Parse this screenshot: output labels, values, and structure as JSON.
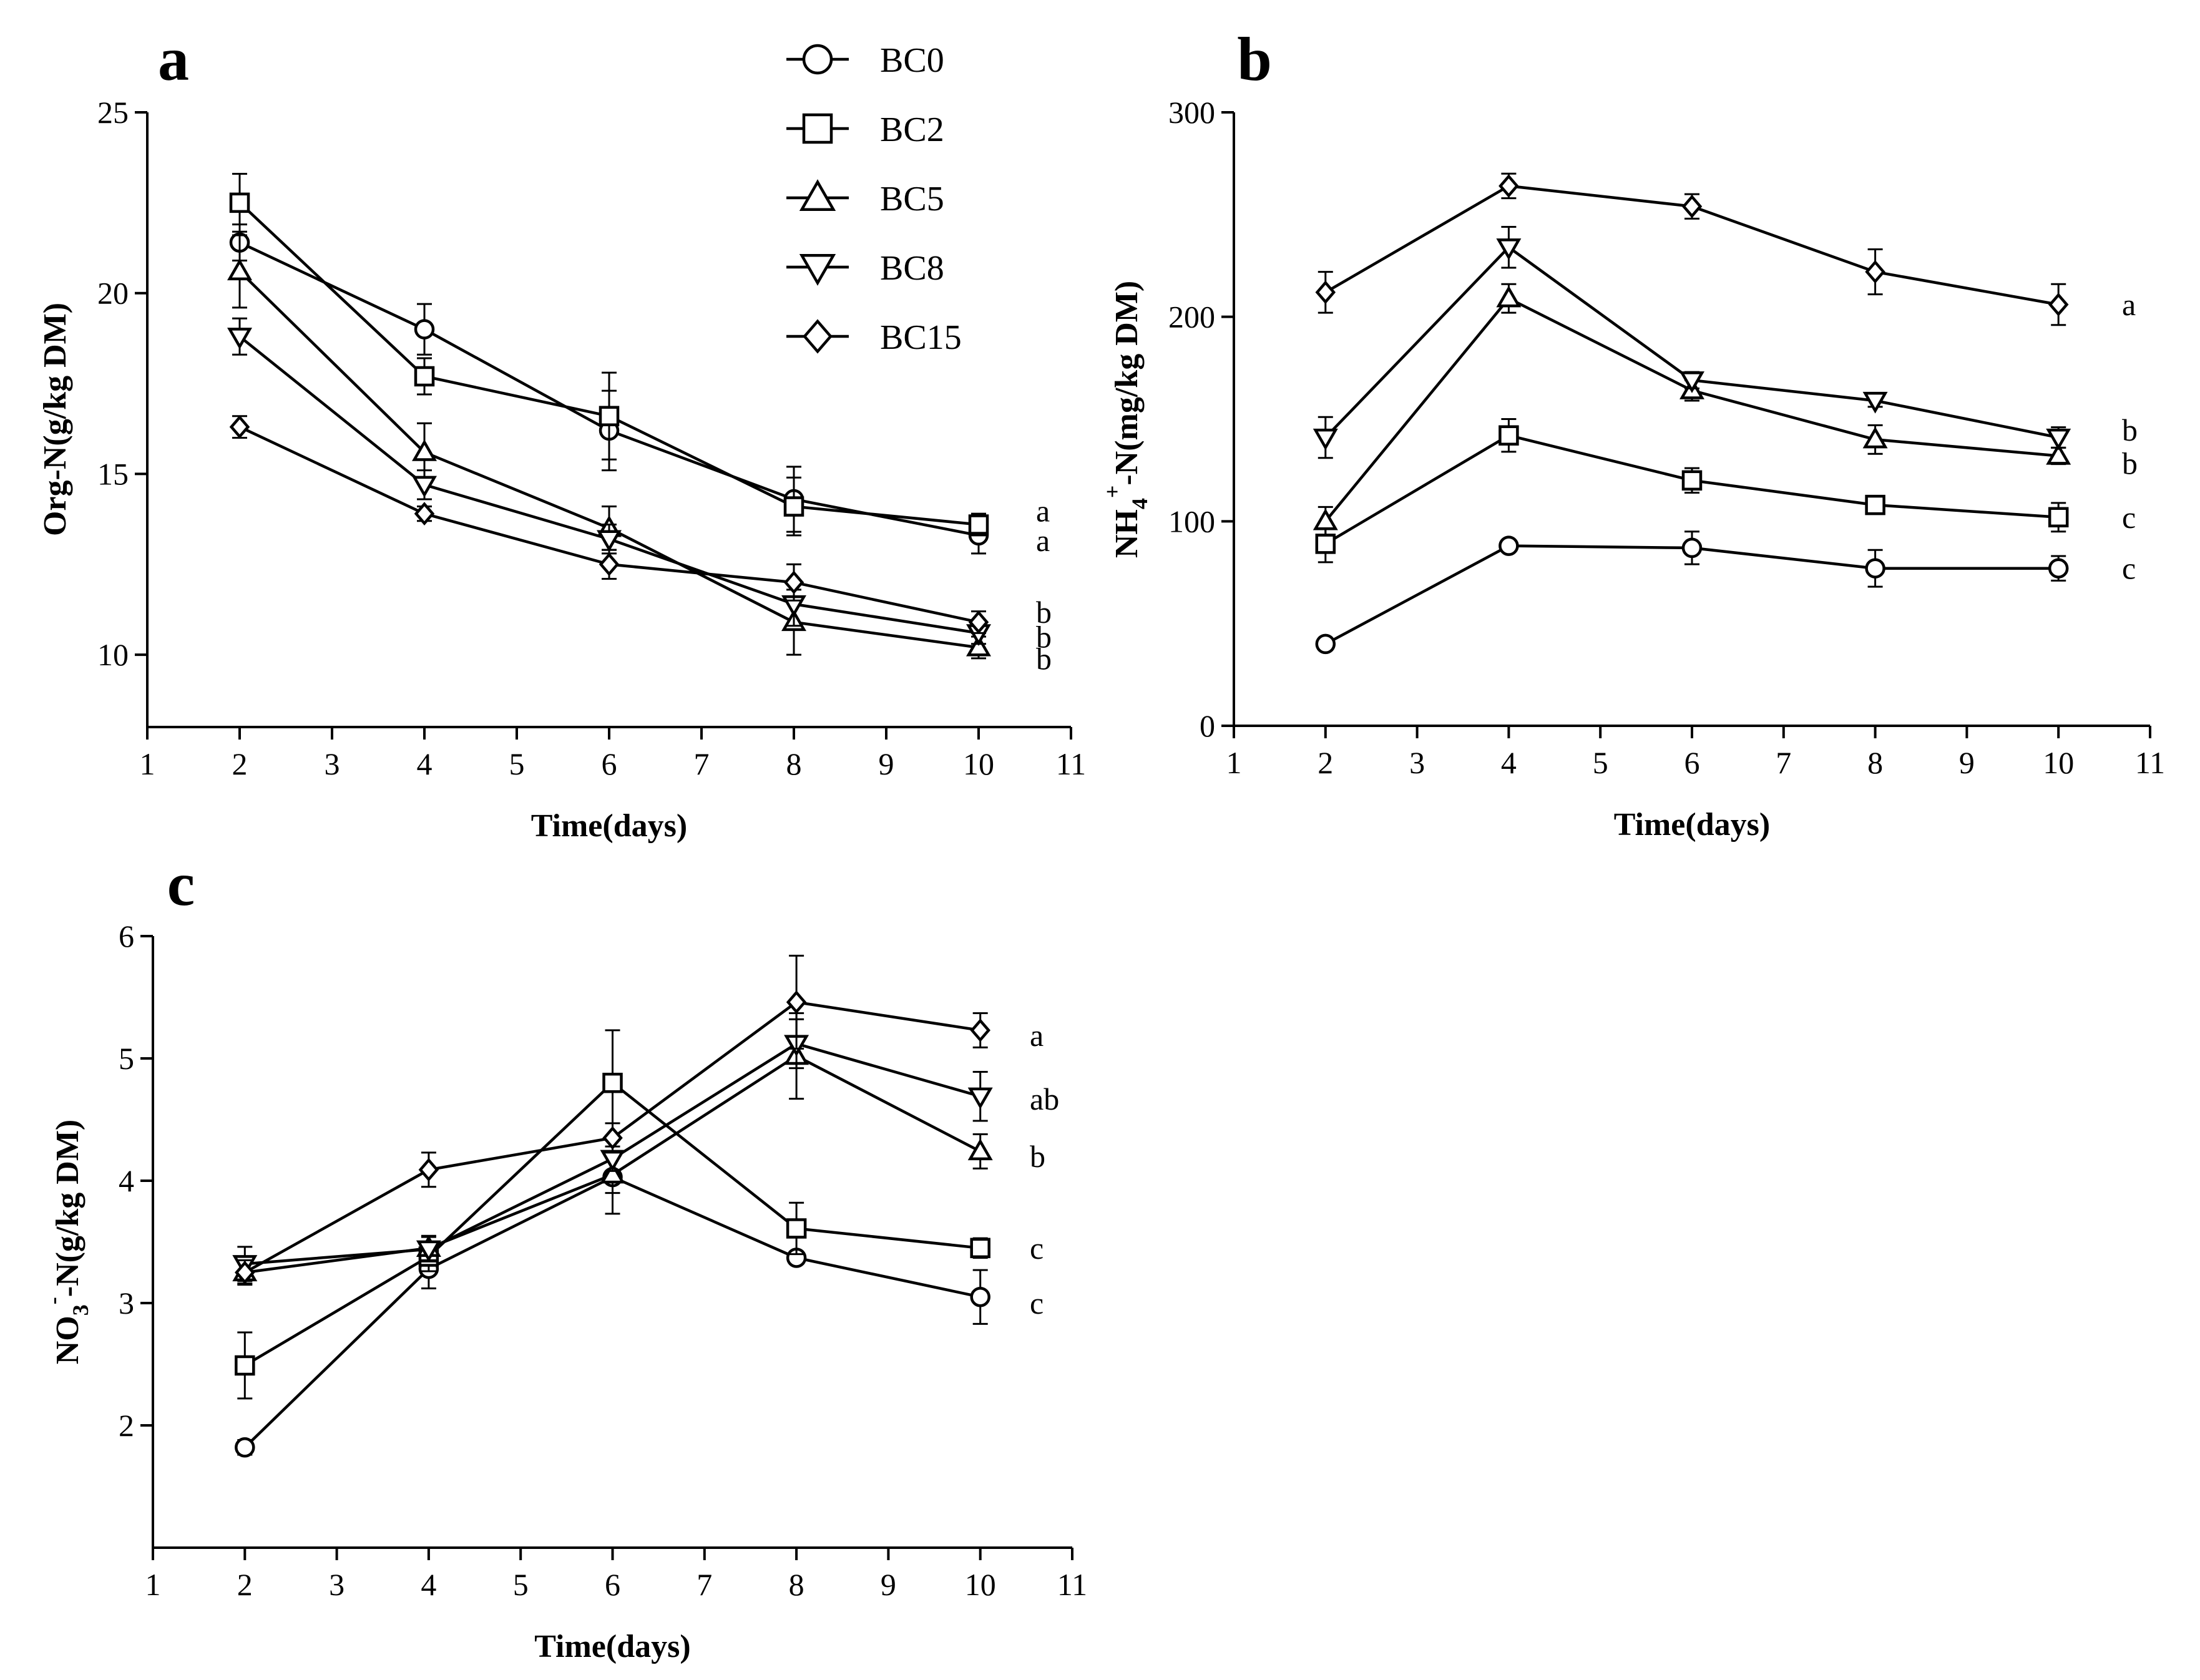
{
  "legend": [
    {
      "name": "BC0",
      "marker": "circle"
    },
    {
      "name": "BC2",
      "marker": "square"
    },
    {
      "name": "BC5",
      "marker": "triangle-up"
    },
    {
      "name": "BC8",
      "marker": "triangle-down"
    },
    {
      "name": "BC15",
      "marker": "diamond"
    }
  ],
  "chart_data": [
    {
      "type": "line",
      "panel": "a",
      "xlabel": "Time(days)",
      "ylabel": "Org-N(g/kg DM)",
      "xlim": [
        1,
        11
      ],
      "xticks": [
        1,
        2,
        3,
        4,
        5,
        6,
        7,
        8,
        9,
        10,
        11
      ],
      "ylim": [
        8,
        25
      ],
      "yticks": [
        10,
        15,
        20,
        25
      ],
      "x": [
        2,
        4,
        6,
        8,
        10
      ],
      "series": [
        {
          "name": "BC0",
          "marker": "circle",
          "values": [
            21.4,
            19.0,
            16.2,
            14.3,
            13.3
          ],
          "errors": [
            0.5,
            0.7,
            1.1,
            0.9,
            0.5
          ],
          "sig": "a"
        },
        {
          "name": "BC2",
          "marker": "square",
          "values": [
            22.5,
            17.7,
            16.6,
            14.1,
            13.6
          ],
          "errors": [
            0.8,
            0.5,
            1.2,
            0.8,
            0.3
          ],
          "sig": "a"
        },
        {
          "name": "BC5",
          "marker": "triangle-up",
          "values": [
            20.6,
            15.6,
            13.5,
            10.9,
            10.2
          ],
          "errors": [
            1.0,
            0.8,
            0.6,
            0.9,
            0.3
          ],
          "sig": "b"
        },
        {
          "name": "BC8",
          "marker": "triangle-down",
          "values": [
            18.8,
            14.7,
            13.2,
            11.4,
            10.6
          ],
          "errors": [
            0.5,
            0.4,
            0.4,
            0.6,
            0.3
          ],
          "sig": "b"
        },
        {
          "name": "BC15",
          "marker": "diamond",
          "values": [
            16.3,
            13.9,
            12.5,
            12.0,
            10.9
          ],
          "errors": [
            0.3,
            0.2,
            0.4,
            0.5,
            0.3
          ],
          "sig": "b"
        }
      ]
    },
    {
      "type": "line",
      "panel": "b",
      "xlabel": "Time(days)",
      "ylabel": "NH4+-N(mg/kg DM)",
      "ylabel_parts": {
        "base": "NH",
        "sub": "4",
        "sup": "+",
        "rest": "-N(mg/kg DM)"
      },
      "xlim": [
        1,
        11
      ],
      "xticks": [
        1,
        2,
        3,
        4,
        5,
        6,
        7,
        8,
        9,
        10,
        11
      ],
      "ylim": [
        0,
        300
      ],
      "yticks": [
        0,
        100,
        200,
        300
      ],
      "x": [
        2,
        4,
        6,
        8,
        10
      ],
      "series": [
        {
          "name": "BC0",
          "marker": "circle",
          "values": [
            40,
            88,
            87,
            77,
            77
          ],
          "errors": [
            3,
            2,
            8,
            9,
            6
          ],
          "sig": "c"
        },
        {
          "name": "BC2",
          "marker": "square",
          "values": [
            89,
            142,
            120,
            108,
            102
          ],
          "errors": [
            9,
            8,
            6,
            4,
            7
          ],
          "sig": "c"
        },
        {
          "name": "BC5",
          "marker": "triangle-up",
          "values": [
            100,
            209,
            164,
            140,
            132
          ],
          "errors": [
            7,
            7,
            5,
            7,
            4
          ],
          "sig": "b"
        },
        {
          "name": "BC8",
          "marker": "triangle-down",
          "values": [
            141,
            234,
            169,
            159,
            141
          ],
          "errors": [
            10,
            10,
            4,
            3,
            5
          ],
          "sig": "b"
        },
        {
          "name": "BC15",
          "marker": "diamond",
          "values": [
            212,
            264,
            254,
            222,
            206
          ],
          "errors": [
            10,
            6,
            6,
            11,
            10
          ],
          "sig": "a"
        }
      ]
    },
    {
      "type": "line",
      "panel": "c",
      "xlabel": "Time(days)",
      "ylabel": "NO3--N(g/kg DM)",
      "ylabel_parts": {
        "base": "NO",
        "sub": "3",
        "sup": "-",
        "rest": "-N(g/kg DM)"
      },
      "xlim": [
        1,
        11
      ],
      "xticks": [
        1,
        2,
        3,
        4,
        5,
        6,
        7,
        8,
        9,
        10,
        11
      ],
      "ylim": [
        1,
        6
      ],
      "yticks": [
        2,
        3,
        4,
        5,
        6
      ],
      "x": [
        2,
        4,
        6,
        8,
        10
      ],
      "series": [
        {
          "name": "BC0",
          "marker": "circle",
          "values": [
            1.82,
            3.28,
            4.03,
            3.37,
            3.05
          ],
          "errors": [
            0.06,
            0.16,
            0.3,
            0.05,
            0.22
          ],
          "sig": "c"
        },
        {
          "name": "BC2",
          "marker": "square",
          "values": [
            2.49,
            3.38,
            4.8,
            3.61,
            3.45
          ],
          "errors": [
            0.27,
            0.12,
            0.43,
            0.21,
            0.08
          ],
          "sig": "c"
        },
        {
          "name": "BC5",
          "marker": "triangle-up",
          "values": [
            3.25,
            3.45,
            4.05,
            5.02,
            4.24
          ],
          "errors": [
            0.09,
            0.1,
            0.15,
            0.35,
            0.14
          ],
          "sig": "b"
        },
        {
          "name": "BC8",
          "marker": "triangle-down",
          "values": [
            3.32,
            3.44,
            4.18,
            5.12,
            4.69
          ],
          "errors": [
            0.14,
            0.1,
            0.1,
            0.2,
            0.2
          ],
          "sig": "ab"
        },
        {
          "name": "BC15",
          "marker": "diamond",
          "values": [
            3.25,
            4.09,
            4.35,
            5.46,
            5.23
          ],
          "errors": [
            0.1,
            0.14,
            0.12,
            0.38,
            0.14
          ],
          "sig": "a"
        }
      ]
    }
  ]
}
